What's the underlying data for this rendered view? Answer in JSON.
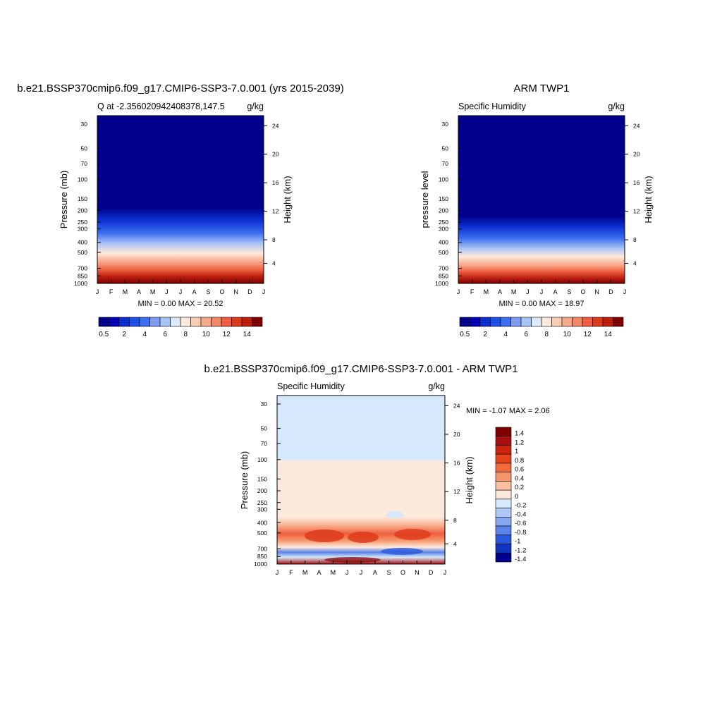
{
  "chart_data": [
    {
      "type": "heatmap",
      "id": "model",
      "title": "b.e21.BSSP370cmip6.f09_g17.CMIP6-SSP3-7.0.001 (yrs 2015-2039)",
      "subtitle_left": "Q at -2.356020942408378,147.5",
      "subtitle_right": "g/kg",
      "ylabel": "Pressure (mb)",
      "ylabel_right": "Height (km)",
      "x_ticks": [
        "J",
        "F",
        "M",
        "A",
        "M",
        "J",
        "J",
        "A",
        "S",
        "O",
        "N",
        "D",
        "J"
      ],
      "y_ticks": [
        "30",
        "50",
        "70",
        "100",
        "150",
        "200",
        "250",
        "300",
        "400",
        "500",
        "700",
        "850",
        "1000"
      ],
      "y_ticks_right": [
        "24",
        "20",
        "16",
        "12",
        "8",
        "4"
      ],
      "stats": "MIN =   0.00 MAX =  20.52",
      "colorbar_labels": [
        "0.5",
        "2",
        "4",
        "6",
        "8",
        "10",
        "12",
        "14"
      ]
    },
    {
      "type": "heatmap",
      "id": "obs",
      "title": "ARM TWP1",
      "subtitle_left": "Specific Humidity",
      "subtitle_right": "g/kg",
      "ylabel": "pressure level",
      "ylabel_right": "Height (km)",
      "x_ticks": [
        "J",
        "F",
        "M",
        "A",
        "M",
        "J",
        "J",
        "A",
        "S",
        "O",
        "N",
        "D",
        "J"
      ],
      "y_ticks": [
        "30",
        "50",
        "70",
        "100",
        "150",
        "200",
        "250",
        "300",
        "400",
        "500",
        "700",
        "850",
        "1000"
      ],
      "y_ticks_right": [
        "24",
        "20",
        "16",
        "12",
        "8",
        "4"
      ],
      "stats": "MIN =   0.00 MAX =  18.97",
      "colorbar_labels": [
        "0.5",
        "2",
        "4",
        "6",
        "8",
        "10",
        "12",
        "14"
      ]
    },
    {
      "type": "heatmap",
      "id": "diff",
      "title": "b.e21.BSSP370cmip6.f09_g17.CMIP6-SSP3-7.0.001 - ARM TWP1",
      "subtitle_left": "Specific Humidity",
      "subtitle_right": "g/kg",
      "ylabel": "Pressure (mb)",
      "ylabel_right": "Height (km)",
      "x_ticks": [
        "J",
        "F",
        "M",
        "A",
        "M",
        "J",
        "J",
        "A",
        "S",
        "O",
        "N",
        "D",
        "J"
      ],
      "y_ticks": [
        "30",
        "50",
        "70",
        "100",
        "150",
        "200",
        "250",
        "300",
        "400",
        "500",
        "700",
        "850",
        "1000"
      ],
      "y_ticks_right": [
        "24",
        "20",
        "16",
        "12",
        "8",
        "4"
      ],
      "stats": "MIN =  -1.07 MAX =   2.06",
      "colorbar_labels": [
        "1.4",
        "1.2",
        "1",
        "0.8",
        "0.6",
        "0.4",
        "0.2",
        "0",
        "-0.2",
        "-0.4",
        "-0.6",
        "-0.8",
        "-1",
        "-1.2",
        "-1.4"
      ]
    }
  ],
  "colors": {
    "blue_red_16": [
      "#00008b",
      "#0000b4",
      "#0b2fd0",
      "#1f50e6",
      "#3b6ef0",
      "#7a9cf2",
      "#a8c2f6",
      "#dbe9fb",
      "#fde9db",
      "#fbcbb3",
      "#f7a98a",
      "#f38866",
      "#ee5e3e",
      "#dd3a1a",
      "#b81d0f",
      "#800000"
    ],
    "diff_15": [
      "#800000",
      "#a80e0e",
      "#cc2410",
      "#e8441c",
      "#f06a3c",
      "#f5956b",
      "#f9c0a0",
      "#fde9db",
      "#d6e8fb",
      "#adc8f6",
      "#87a8f0",
      "#5a82e8",
      "#2a58dc",
      "#0f34c0",
      "#00008c"
    ]
  }
}
